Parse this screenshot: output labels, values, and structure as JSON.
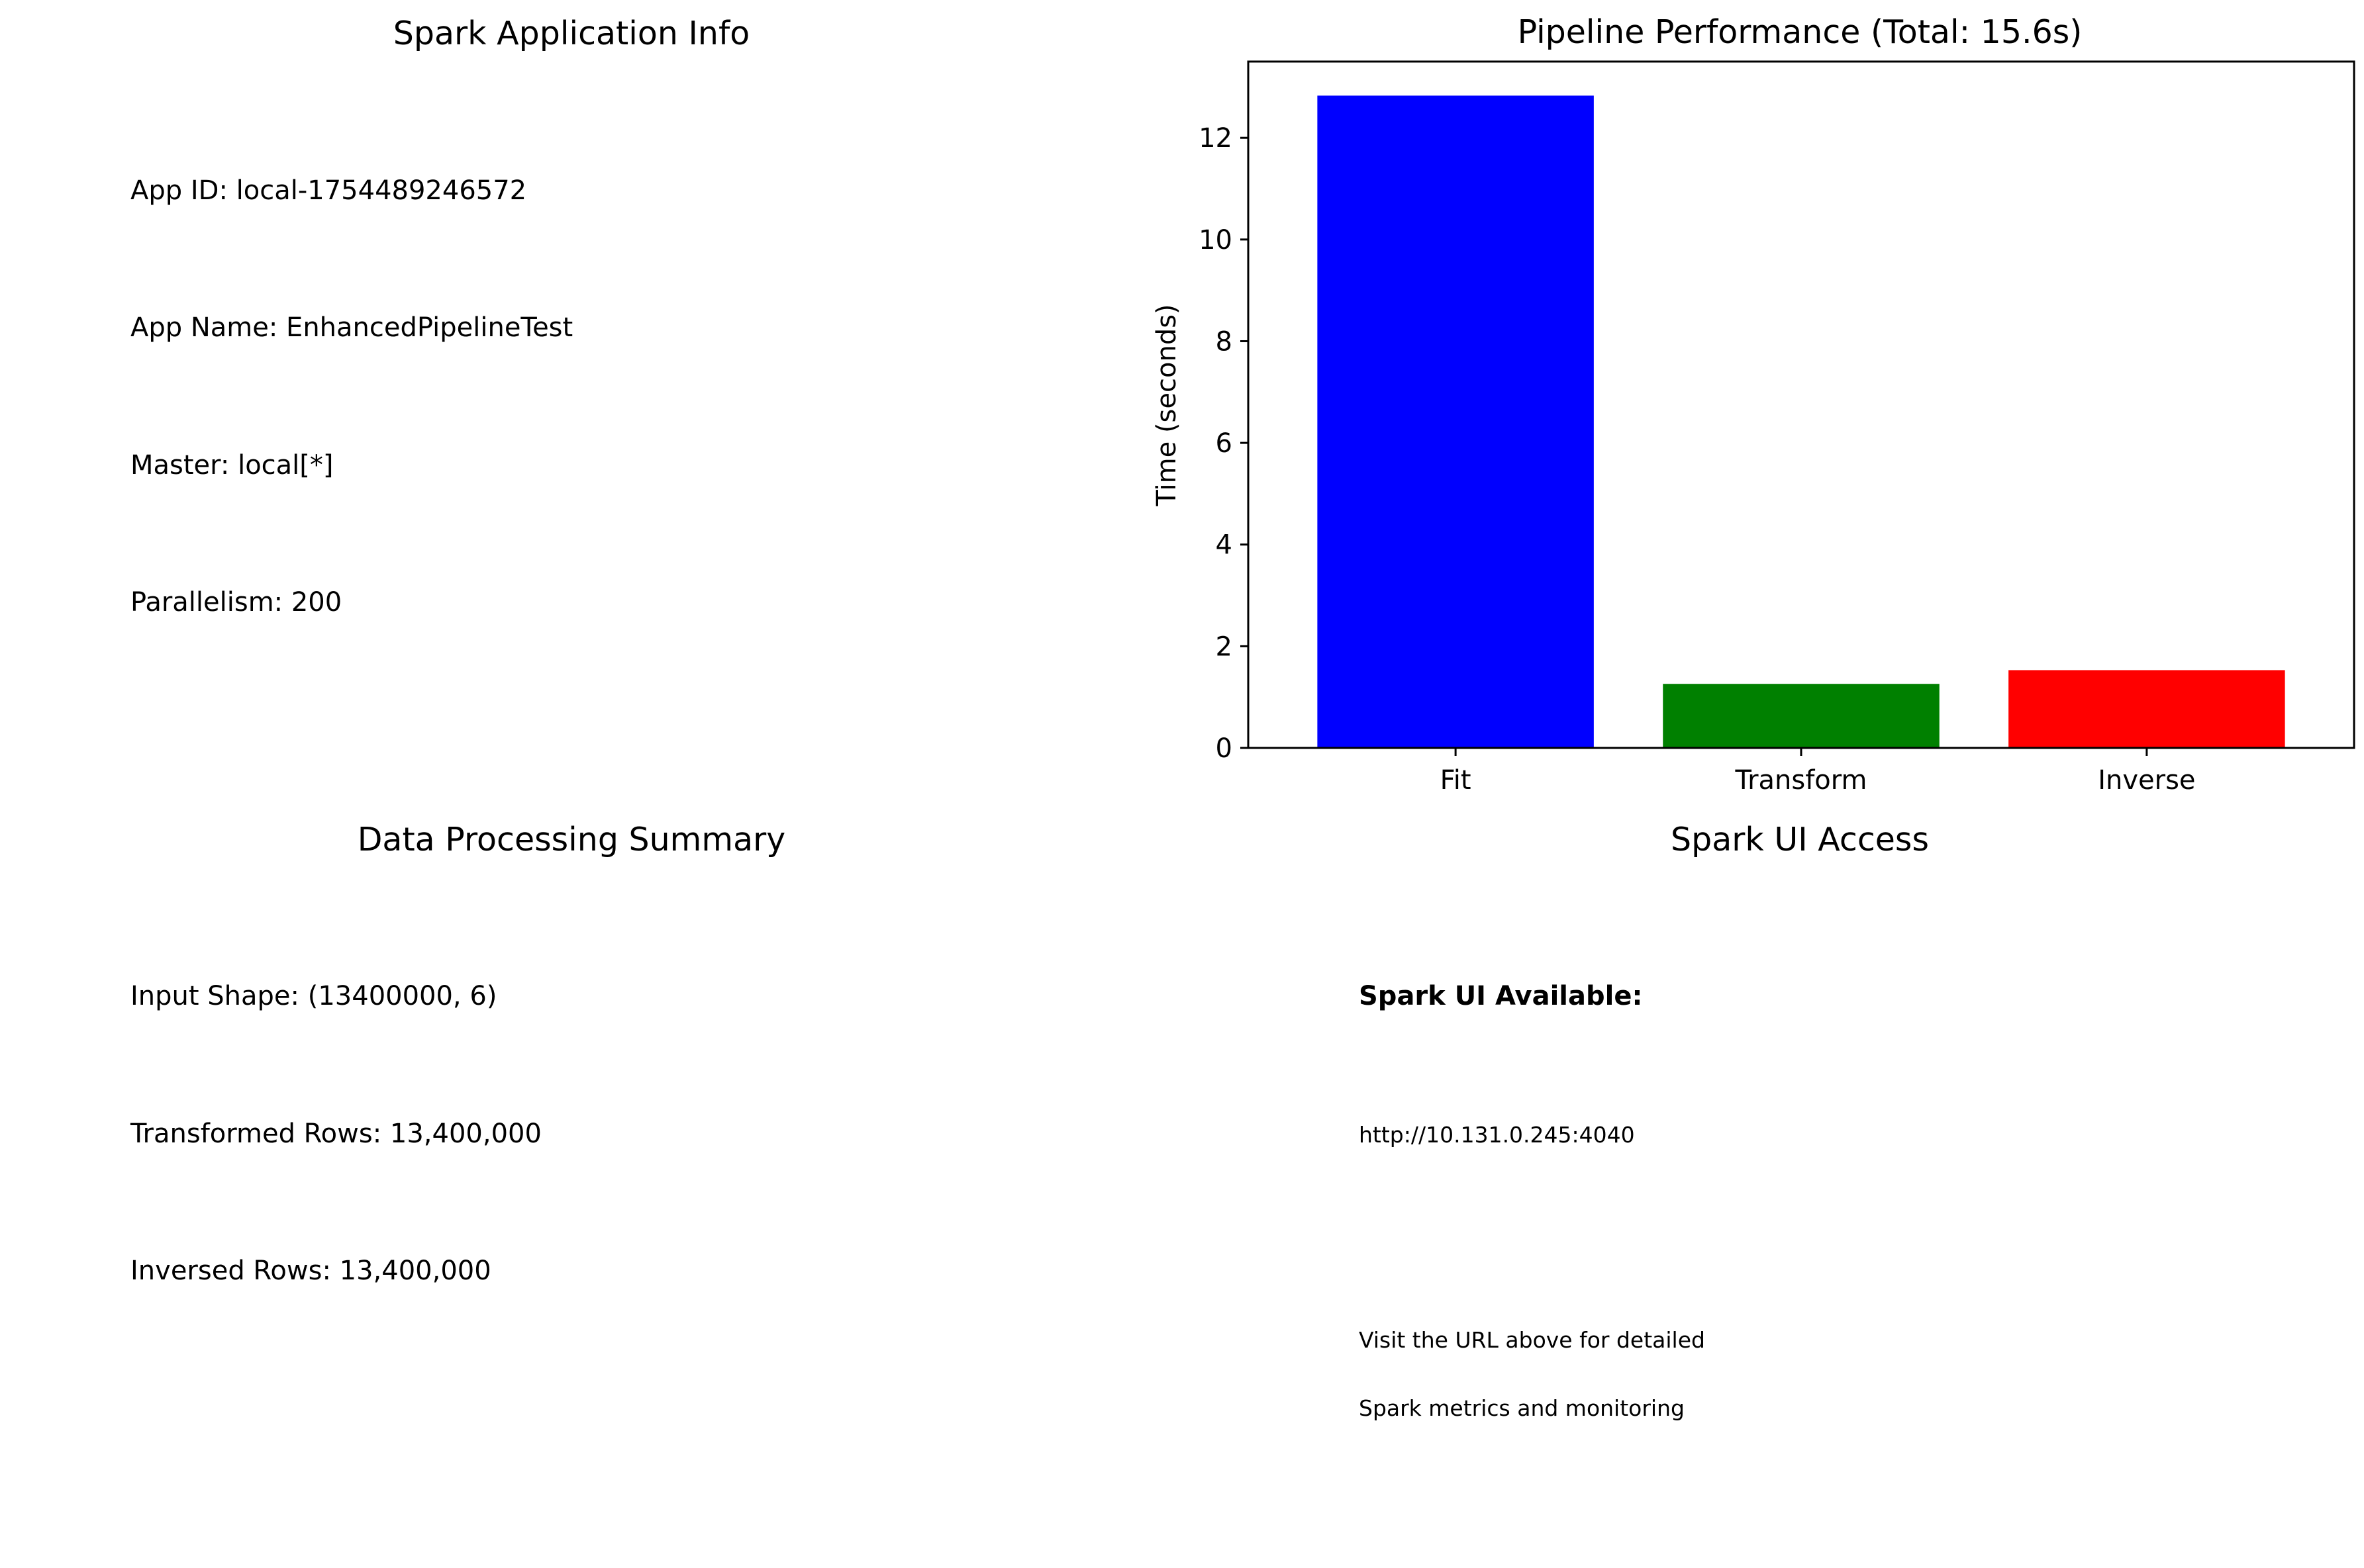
{
  "app_info": {
    "title": "Spark Application Info",
    "lines": [
      "App ID: local-1754489246572",
      "App Name: EnhancedPipelineTest",
      "Master: local[*]",
      "Parallelism: 200"
    ]
  },
  "data_summary": {
    "title": "Data Processing Summary",
    "lines": [
      "Input Shape: (13400000, 6)",
      "Transformed Rows: 13,400,000",
      "Inversed Rows: 13,400,000"
    ]
  },
  "spark_ui": {
    "title": "Spark UI Access",
    "heading": "Spark UI Available:",
    "url": "http://10.131.0.245:4040",
    "note_lines": [
      "Visit the URL above for detailed",
      "Spark metrics and monitoring"
    ]
  },
  "chart_data": {
    "type": "bar",
    "title": "Pipeline Performance (Total: 15.6s)",
    "xlabel": "",
    "ylabel": "Time (seconds)",
    "categories": [
      "Fit",
      "Transform",
      "Inverse"
    ],
    "values": [
      12.83,
      1.26,
      1.53
    ],
    "colors": [
      "#0000ff",
      "#008000",
      "#ff0000"
    ],
    "ylim": [
      0,
      13.5
    ],
    "yticks": [
      0,
      2,
      4,
      6,
      8,
      10,
      12
    ],
    "grid": false,
    "legend": "none"
  }
}
